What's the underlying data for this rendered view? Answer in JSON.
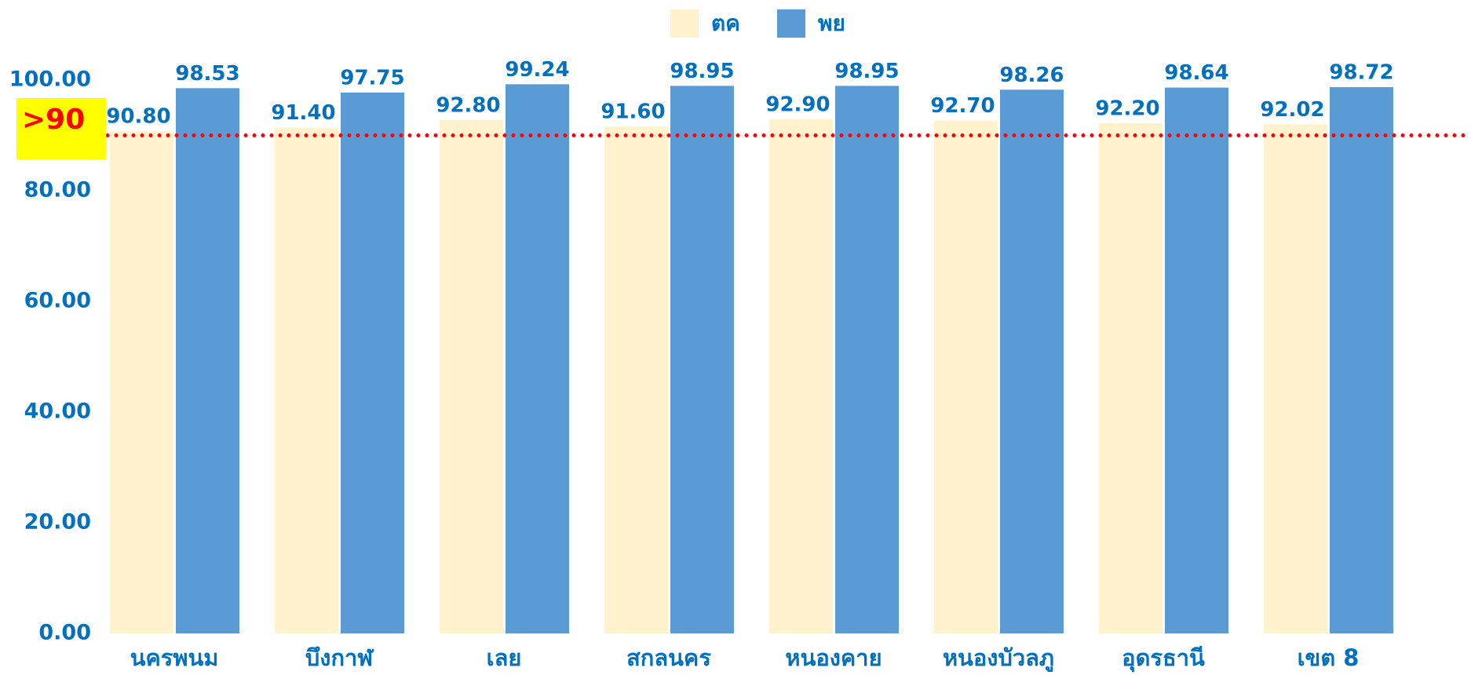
{
  "chart_data": {
    "type": "bar",
    "categories": [
      "นครพนม",
      "บึงกาฬ",
      "เลย",
      "สกลนคร",
      "หนองคาย",
      "หนองบัวลภู",
      "อุดรธานี",
      "เขต 8"
    ],
    "series": [
      {
        "name": "ตค",
        "color": "#fff2cc",
        "values": [
          90.8,
          91.4,
          92.8,
          91.6,
          92.9,
          92.7,
          92.2,
          92.02
        ],
        "value_labels": [
          "90.80",
          "91.40",
          "92.80",
          "91.60",
          "92.90",
          "92.70",
          "92.20",
          "92.02"
        ]
      },
      {
        "name": "พย",
        "color": "#5b9bd5",
        "values": [
          98.53,
          97.75,
          99.24,
          98.95,
          98.95,
          98.26,
          98.64,
          98.72
        ],
        "value_labels": [
          "98.53",
          "97.75",
          "99.24",
          "98.95",
          "98.95",
          "98.26",
          "98.64",
          "98.72"
        ]
      }
    ],
    "ylim": [
      0,
      100
    ],
    "yticks": [
      {
        "value": 0,
        "label": "0.00"
      },
      {
        "value": 20,
        "label": "20.00"
      },
      {
        "value": 40,
        "label": "40.00"
      },
      {
        "value": 60,
        "label": "60.00"
      },
      {
        "value": 80,
        "label": "80.00"
      },
      {
        "value": 100,
        "label": "100.00"
      }
    ],
    "grid": false,
    "legend": "top",
    "reference_line": {
      "value": 90,
      "label": ">90",
      "color": "#ff0000"
    }
  }
}
